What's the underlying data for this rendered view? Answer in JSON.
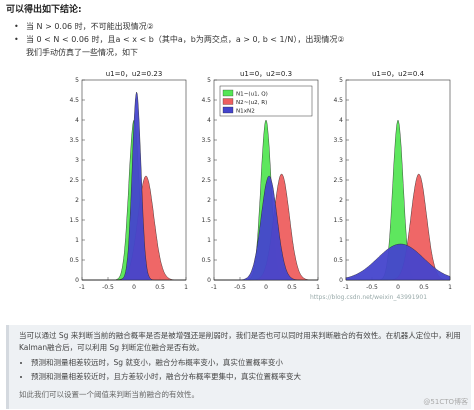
{
  "conclusion_title": "可以得出如下结论:",
  "bullets": [
    "当 N > 0.06 时，不可能出现情况②",
    "当 0 < N < 0.06 时，且a < x < b（其中a，b为两交点，a > 0, b < 1/N），出现情况②",
    "我们手动仿真了一些情况，如下"
  ],
  "chart_data": [
    {
      "type": "area",
      "title": "u1=0，u2=0.23",
      "ylim": [
        0,
        5
      ],
      "xlim": [
        -1,
        1
      ],
      "xticks": [
        "-1",
        "-0.5",
        "0",
        "0.5",
        "1"
      ],
      "yticks": [
        "0",
        "0.5",
        "1",
        "1.5",
        "2",
        "2.5",
        "3",
        "3.5",
        "4",
        "4.5",
        "5"
      ],
      "series": [
        {
          "name": "N1~(u1, Q)",
          "mean": 0,
          "peak": 4.0,
          "color": "#55e655"
        },
        {
          "name": "N2~(u2, R)",
          "mean": 0.23,
          "peak": 2.6,
          "color": "#ee5f5f"
        },
        {
          "name": "N1xN2",
          "mean": 0.05,
          "peak": 4.7,
          "color": "#4444cc"
        }
      ]
    },
    {
      "type": "area",
      "title": "u1=0，u2=0.3",
      "ylim": [
        0,
        5
      ],
      "xlim": [
        -1,
        1
      ],
      "xticks": [
        "-1",
        "-0.5",
        "0",
        "0.5",
        "1"
      ],
      "yticks": [
        "0",
        "0.5",
        "1",
        "1.5",
        "2",
        "2.5",
        "3",
        "3.5",
        "4",
        "4.5",
        "5"
      ],
      "series": [
        {
          "name": "N1~(u1, Q)",
          "mean": 0,
          "peak": 4.0,
          "color": "#55e655"
        },
        {
          "name": "N2~(u2, R)",
          "mean": 0.3,
          "peak": 2.65,
          "color": "#ee5f5f"
        },
        {
          "name": "N1xN2",
          "mean": 0.06,
          "peak": 2.6,
          "color": "#4444cc"
        }
      ],
      "legend": {
        "location": "top",
        "entries": [
          "N1~(u1, Q)",
          "N2~(u2, R)",
          "N1xN2"
        ]
      }
    },
    {
      "type": "area",
      "title": "u1=0，u2=0.4",
      "ylim": [
        0,
        5
      ],
      "xlim": [
        -1,
        1
      ],
      "xticks": [
        "-1",
        "-0.5",
        "0",
        "0.5",
        "1"
      ],
      "yticks": [
        "0",
        "0.5",
        "1",
        "1.5",
        "2",
        "2.5",
        "3",
        "3.5",
        "4",
        "4.5",
        "5"
      ],
      "series": [
        {
          "name": "N1~(u1, Q)",
          "mean": 0,
          "peak": 4.0,
          "color": "#55e655"
        },
        {
          "name": "N2~(u2, R)",
          "mean": 0.4,
          "peak": 2.65,
          "color": "#ee5f5f"
        },
        {
          "name": "N1xN2",
          "mean": 0.05,
          "peak": 0.9,
          "color": "#4444cc"
        }
      ]
    }
  ],
  "figure_watermark": "https://blog.csdn.net/weixin_43991901",
  "quote": {
    "paragraph": "当可以通过 Sg 来判断当前的融合概率是否是被增强还是削弱时，我们是否也可以同时用来判断融合的有效性。在机器人定位中，利用Kalman融合后，可以利用 Sg 判断定位融合是否有效。",
    "items": [
      "预测和测量相差较远时，Sg 就变小，融合分布概率变小，真实位置概率变小",
      "预测和测量相差较近时，且方差较小时，融合分布概率更集中，真实位置概率变大"
    ],
    "note": "如此我们可以设置一个阈值来判断当前融合的有效性。"
  },
  "site_watermark": "@51CTO博客"
}
